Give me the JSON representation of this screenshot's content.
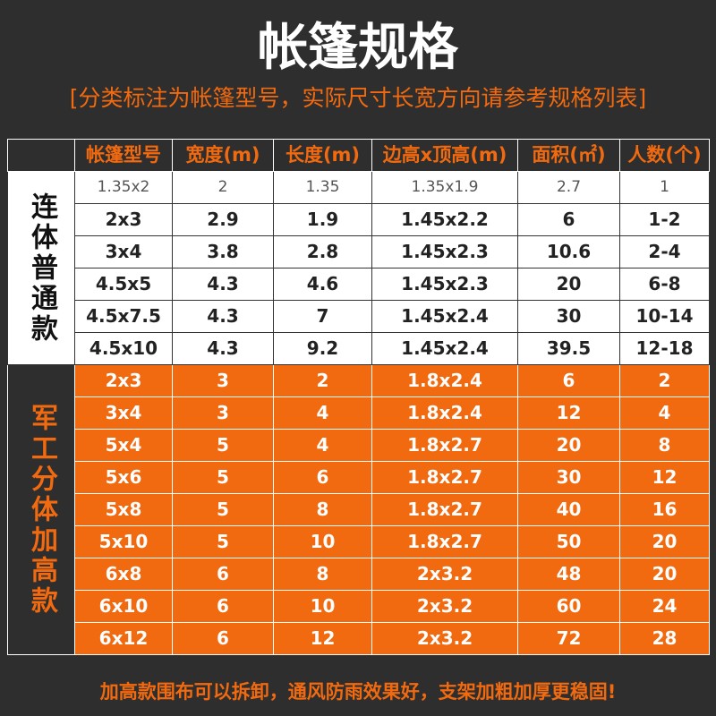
{
  "header": {
    "title": "帐篷规格",
    "subtitle": "[分类标注为帐篷型号，实际尺寸长宽方向请参考规格列表]"
  },
  "table": {
    "columns": [
      "帐篷型号",
      "宽度(m)",
      "长度(m)",
      "边高x顶高(m)",
      "面积(㎡)",
      "人数(个)"
    ],
    "groups": [
      {
        "label": "连体普通款",
        "rows": [
          [
            "1.35x2",
            "2",
            "1.35",
            "1.35x1.9",
            "2.7",
            "1"
          ],
          [
            "2x3",
            "2.9",
            "1.9",
            "1.45x2.2",
            "6",
            "1-2"
          ],
          [
            "3x4",
            "3.8",
            "2.8",
            "1.45x2.3",
            "10.6",
            "2-4"
          ],
          [
            "4.5x5",
            "4.3",
            "4.6",
            "1.45x2.3",
            "20",
            "6-8"
          ],
          [
            "4.5x7.5",
            "4.3",
            "7",
            "1.45x2.4",
            "30",
            "10-14"
          ],
          [
            "4.5x10",
            "4.3",
            "9.2",
            "1.45x2.4",
            "39.5",
            "12-18"
          ]
        ]
      },
      {
        "label": "军工分体加高款",
        "rows": [
          [
            "2x3",
            "3",
            "2",
            "1.8x2.4",
            "6",
            "2"
          ],
          [
            "3x4",
            "3",
            "4",
            "1.8x2.4",
            "12",
            "4"
          ],
          [
            "5x4",
            "5",
            "4",
            "1.8x2.7",
            "20",
            "8"
          ],
          [
            "5x6",
            "5",
            "6",
            "1.8x2.7",
            "30",
            "12"
          ],
          [
            "5x8",
            "5",
            "8",
            "1.8x2.7",
            "40",
            "16"
          ],
          [
            "5x10",
            "5",
            "10",
            "1.8x2.7",
            "50",
            "20"
          ],
          [
            "6x8",
            "6",
            "8",
            "2x3.2",
            "48",
            "20"
          ],
          [
            "6x10",
            "6",
            "10",
            "2x3.2",
            "60",
            "24"
          ],
          [
            "6x12",
            "6",
            "12",
            "2x3.2",
            "72",
            "28"
          ]
        ]
      }
    ]
  },
  "footer": "加高款围布可以拆卸，通风防雨效果好，支架加粗加厚更稳固!"
}
